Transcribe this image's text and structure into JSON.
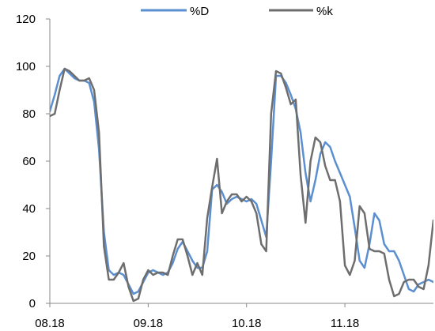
{
  "chart_data": {
    "type": "line",
    "title": "",
    "xlabel": "",
    "ylabel": "",
    "ylim": [
      0,
      120
    ],
    "yticks": [
      0,
      20,
      40,
      60,
      80,
      100,
      120
    ],
    "xticks": [
      {
        "label": "08.18",
        "x": 0
      },
      {
        "label": "09.18",
        "x": 20
      },
      {
        "label": "10.18",
        "x": 40
      },
      {
        "label": "11.18",
        "x": 60
      }
    ],
    "xlim": [
      0,
      78
    ],
    "grid": false,
    "legend": "top-center",
    "series": [
      {
        "name": "%D",
        "color": "#5b8fd0",
        "values": [
          81,
          88,
          96,
          99,
          97,
          95,
          94,
          94,
          93,
          85,
          65,
          30,
          14,
          12,
          13,
          12,
          8,
          4,
          5,
          9,
          13,
          14,
          13,
          12,
          13,
          17,
          23,
          26,
          22,
          18,
          15,
          15,
          22,
          48,
          50,
          47,
          42,
          44,
          45,
          44,
          43,
          44,
          42,
          35,
          28,
          60,
          96,
          96,
          93,
          88,
          82,
          72,
          55,
          43,
          52,
          63,
          68,
          66,
          60,
          55,
          50,
          45,
          32,
          18,
          15,
          25,
          38,
          35,
          25,
          22,
          22,
          18,
          12,
          6,
          5,
          8,
          9,
          10,
          9
        ]
      },
      {
        "name": "%k",
        "color": "#6e6e6e",
        "values": [
          79,
          80,
          90,
          99,
          98,
          96,
          94,
          94,
          95,
          90,
          72,
          24,
          10,
          10,
          13,
          17,
          7,
          1,
          2,
          10,
          14,
          12,
          13,
          13,
          12,
          20,
          27,
          27,
          20,
          12,
          17,
          12,
          36,
          49,
          61,
          38,
          43,
          46,
          46,
          43,
          45,
          43,
          38,
          25,
          22,
          80,
          98,
          97,
          91,
          84,
          86,
          54,
          34,
          60,
          70,
          68,
          58,
          52,
          52,
          43,
          16,
          12,
          18,
          41,
          38,
          23,
          22,
          22,
          21,
          10,
          3,
          4,
          9,
          10,
          10,
          7,
          6,
          16,
          35
        ]
      }
    ]
  }
}
